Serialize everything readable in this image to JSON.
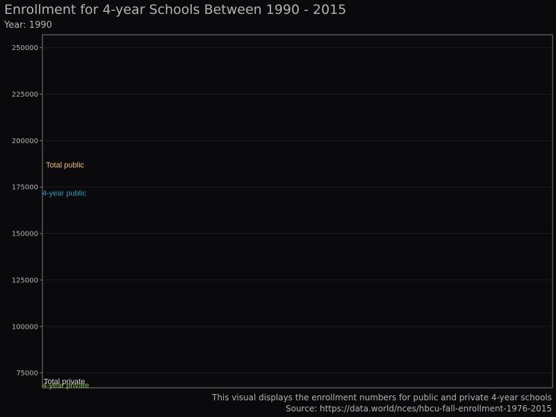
{
  "chart_data": {
    "type": "line",
    "title": "Enrollment for 4-year Schools Between 1990 - 2015",
    "subtitle": "Year: 1990",
    "xlabel": "",
    "ylabel": "",
    "y_ticks": [
      75000,
      100000,
      125000,
      150000,
      175000,
      200000,
      225000,
      250000
    ],
    "y_tick_labels": [
      "75000",
      "100000",
      "125000",
      "150000",
      "175000",
      "200000",
      "225000",
      "250000"
    ],
    "ylim": [
      67000,
      257000
    ],
    "x": [
      1990
    ],
    "grid": true,
    "series": [
      {
        "name": "Total public",
        "values": [
          187000
        ],
        "color": "#f2c14e"
      },
      {
        "name": "4-year public",
        "values": [
          172000
        ],
        "color": "#1f9bb5"
      },
      {
        "name": "Total private",
        "values": [
          70500
        ],
        "color": "#d9d9d9"
      },
      {
        "name": "4-year private",
        "values": [
          68500
        ],
        "color": "#8fbf3f"
      }
    ],
    "caption": [
      "This visual displays the enrollment numbers for public and private 4-year schools",
      "Source: https://data.world/nces/hbcu-fall-enrollment-1976-2015"
    ]
  }
}
